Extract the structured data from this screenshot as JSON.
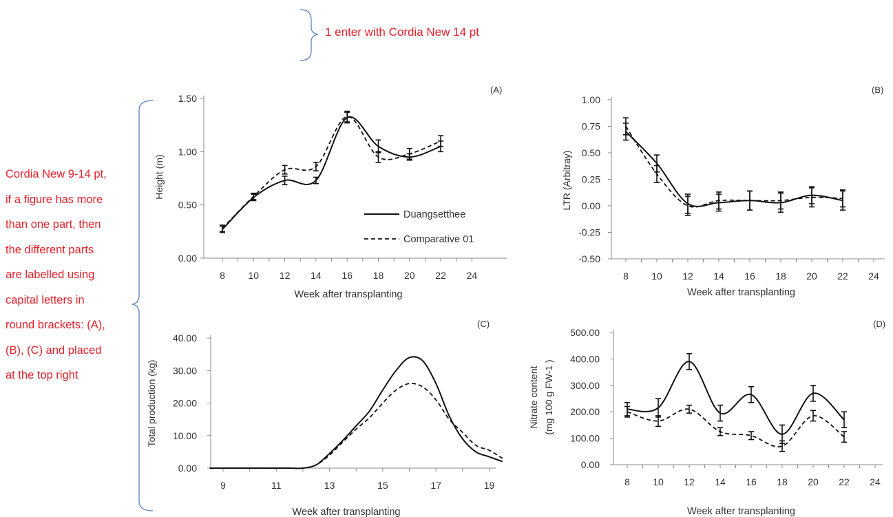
{
  "annotations": {
    "top_note": "1 enter with Cordia New 14 pt",
    "side_note_lines": [
      "Cordia New 9-14 pt,",
      "if a figure has more",
      "than one part, then",
      "the different parts",
      "are labelled using",
      "capital letters in",
      "round brackets: (A),",
      "(B), (C) and placed",
      "at the top right"
    ],
    "accent_color": "#e8202a",
    "brace_color": "#5a7fbf"
  },
  "legend": {
    "series": [
      "Duangsetthee",
      "Comparative 01"
    ]
  },
  "chart_data": [
    {
      "panel": "(A)",
      "type": "line",
      "xlabel": "Week after transplanting",
      "ylabel": "Height (m)",
      "xlim": [
        7,
        25
      ],
      "ylim": [
        0,
        1.5
      ],
      "xticks": [
        "8",
        "10",
        "12",
        "14",
        "16",
        "18",
        "20",
        "22",
        "24"
      ],
      "yticks": [
        "0.00",
        "0.50",
        "1.00",
        "1.50"
      ],
      "series": [
        {
          "name": "Duangsetthee",
          "style": "solid",
          "x": [
            8,
            10,
            12,
            14,
            16,
            18,
            20,
            22
          ],
          "y": [
            0.27,
            0.57,
            0.73,
            0.73,
            1.32,
            1.05,
            0.95,
            1.05
          ],
          "err": [
            0.03,
            0.03,
            0.04,
            0.03,
            0.05,
            0.06,
            0.03,
            0.05
          ]
        },
        {
          "name": "Comparative 01",
          "style": "dashed",
          "x": [
            8,
            10,
            12,
            14,
            16,
            18,
            20,
            22
          ],
          "y": [
            0.28,
            0.58,
            0.83,
            0.86,
            1.33,
            0.95,
            0.98,
            1.1
          ],
          "err": [
            0.03,
            0.03,
            0.04,
            0.04,
            0.05,
            0.05,
            0.05,
            0.05
          ]
        }
      ]
    },
    {
      "panel": "(B)",
      "type": "line",
      "xlabel": "Week after transplanting",
      "ylabel": "LTR (Arbitray)",
      "xlim": [
        7,
        25
      ],
      "ylim": [
        -0.5,
        1.0
      ],
      "xticks": [
        "8",
        "10",
        "12",
        "14",
        "16",
        "18",
        "20",
        "22",
        "24"
      ],
      "yticks": [
        "-0.50",
        "-0.25",
        "0.00",
        "0.25",
        "0.50",
        "0.75",
        "1.00"
      ],
      "series": [
        {
          "name": "Duangsetthee",
          "style": "solid",
          "x": [
            8,
            10,
            12,
            14,
            16,
            18,
            20,
            22
          ],
          "y": [
            0.7,
            0.4,
            0.02,
            0.03,
            0.05,
            0.03,
            0.1,
            0.05
          ],
          "err": [
            0.08,
            0.08,
            0.09,
            0.08,
            0.09,
            0.09,
            0.08,
            0.09
          ]
        },
        {
          "name": "Comparative 01",
          "style": "dashed",
          "x": [
            8,
            10,
            12,
            14,
            16,
            18,
            20,
            22
          ],
          "y": [
            0.75,
            0.3,
            0.0,
            0.05,
            0.05,
            0.05,
            0.08,
            0.07
          ],
          "err": [
            0.08,
            0.08,
            0.09,
            0.08,
            0.09,
            0.08,
            0.09,
            0.08
          ]
        }
      ]
    },
    {
      "panel": "(C)",
      "type": "line",
      "xlabel": "Week after transplanting",
      "ylabel": "Total production (kg)",
      "xlim": [
        8.5,
        19.5
      ],
      "ylim": [
        0,
        40
      ],
      "xticks": [
        "9",
        "11",
        "13",
        "15",
        "17",
        "19"
      ],
      "yticks": [
        "0.00",
        "10.00",
        "20.00",
        "30.00",
        "40.00"
      ],
      "series": [
        {
          "name": "Duangsetthee",
          "style": "solid",
          "x": [
            8.5,
            10.5,
            11.5,
            12.0,
            12.5,
            13.0,
            13.5,
            14.0,
            14.5,
            15.0,
            15.5,
            16.0,
            16.5,
            17.0,
            17.5,
            18.0,
            18.5,
            19.0,
            19.5
          ],
          "y": [
            0,
            0,
            0,
            0,
            1,
            4.5,
            8.5,
            13,
            17.5,
            24,
            30,
            34,
            33,
            26,
            16,
            9,
            5,
            3.5,
            2
          ]
        },
        {
          "name": "Comparative 01",
          "style": "dashed",
          "x": [
            8.5,
            10.5,
            11.5,
            12.0,
            12.5,
            13.0,
            13.5,
            14.0,
            14.5,
            15.0,
            15.5,
            16.0,
            16.5,
            17.0,
            17.5,
            18.0,
            18.5,
            19.0,
            19.5
          ],
          "y": [
            0,
            0,
            0,
            0,
            1,
            4,
            8,
            12,
            15.5,
            20,
            24,
            26,
            25,
            21,
            15,
            11,
            7,
            5.5,
            3
          ]
        }
      ]
    },
    {
      "panel": "(D)",
      "type": "line",
      "xlabel": "Week after transplanting",
      "ylabel": "Nitrate content (mg 100 g FW-1 )",
      "ylabel_lines": [
        "Nitrate content",
        "(mg 100 g FW-1 )"
      ],
      "xlim": [
        7,
        25
      ],
      "ylim": [
        0,
        500
      ],
      "xticks": [
        "8",
        "10",
        "12",
        "14",
        "16",
        "18",
        "20",
        "22",
        "24"
      ],
      "yticks": [
        "0.00",
        "100.00",
        "200.00",
        "300.00",
        "400.00",
        "500.00"
      ],
      "series": [
        {
          "name": "Duangsetthee",
          "style": "solid",
          "x": [
            8,
            10,
            12,
            14,
            16,
            18,
            20,
            22
          ],
          "y": [
            210,
            215,
            390,
            195,
            265,
            115,
            270,
            170
          ],
          "err": [
            25,
            35,
            30,
            30,
            30,
            35,
            30,
            30
          ]
        },
        {
          "name": "Comparative 01",
          "style": "dashed",
          "x": [
            8,
            10,
            12,
            14,
            16,
            18,
            20,
            22
          ],
          "y": [
            200,
            165,
            210,
            125,
            110,
            70,
            185,
            105
          ],
          "err": [
            20,
            20,
            15,
            15,
            15,
            20,
            20,
            20
          ]
        }
      ]
    }
  ]
}
